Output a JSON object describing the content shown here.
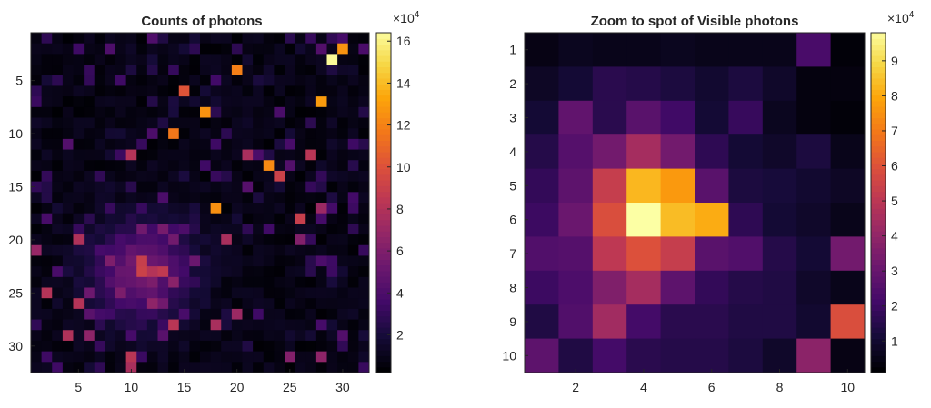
{
  "chart_data": [
    {
      "type": "heatmap",
      "title": "Counts of photons",
      "x_ticks": [
        5,
        10,
        15,
        20,
        25,
        30
      ],
      "y_ticks": [
        5,
        10,
        15,
        20,
        25,
        30
      ],
      "xlim": [
        0.5,
        32.5
      ],
      "ylim": [
        0.5,
        32.5
      ],
      "y_direction": "reverse",
      "grid": "off",
      "colormap": "inferno",
      "colorbar": {
        "ticks": [
          2,
          4,
          6,
          8,
          10,
          12,
          14,
          16
        ],
        "tick_labels": [
          "2",
          "4",
          "6",
          "8",
          "10",
          "12",
          "14",
          "16"
        ],
        "exponent_label": "×10",
        "exponent_power": "4",
        "clim": [
          0.2,
          16.4
        ]
      },
      "bright_cells": [
        {
          "x": 29,
          "y": 3,
          "value": 16.2
        },
        {
          "x": 30,
          "y": 2,
          "value": 12.5
        },
        {
          "x": 20,
          "y": 4,
          "value": 11.8
        },
        {
          "x": 15,
          "y": 6,
          "value": 10.0
        },
        {
          "x": 28,
          "y": 7,
          "value": 12.8
        },
        {
          "x": 17,
          "y": 8,
          "value": 12.5
        },
        {
          "x": 14,
          "y": 10,
          "value": 11.5
        },
        {
          "x": 10,
          "y": 12,
          "value": 8.0
        },
        {
          "x": 21,
          "y": 12,
          "value": 7.5
        },
        {
          "x": 27,
          "y": 12,
          "value": 8.2
        },
        {
          "x": 23,
          "y": 13,
          "value": 12.2
        },
        {
          "x": 24,
          "y": 14,
          "value": 9.0
        },
        {
          "x": 18,
          "y": 17,
          "value": 12.4
        },
        {
          "x": 26,
          "y": 18,
          "value": 8.8
        },
        {
          "x": 28,
          "y": 17,
          "value": 7.0
        },
        {
          "x": 19,
          "y": 20,
          "value": 7.5
        },
        {
          "x": 5,
          "y": 20,
          "value": 7.8
        },
        {
          "x": 1,
          "y": 21,
          "value": 6.8
        },
        {
          "x": 11,
          "y": 23,
          "value": 9.0
        },
        {
          "x": 12,
          "y": 23,
          "value": 8.0
        },
        {
          "x": 13,
          "y": 23,
          "value": 8.5
        },
        {
          "x": 11,
          "y": 22,
          "value": 8.8
        },
        {
          "x": 2,
          "y": 25,
          "value": 8.0
        },
        {
          "x": 5,
          "y": 26,
          "value": 8.0
        },
        {
          "x": 12,
          "y": 26,
          "value": 6.5
        },
        {
          "x": 14,
          "y": 28,
          "value": 8.2
        },
        {
          "x": 4,
          "y": 29,
          "value": 7.8
        },
        {
          "x": 18,
          "y": 28,
          "value": 7.5
        },
        {
          "x": 20,
          "y": 27,
          "value": 7.0
        },
        {
          "x": 28,
          "y": 31,
          "value": 6.5
        },
        {
          "x": 10,
          "y": 31,
          "value": 8.2
        },
        {
          "x": 10,
          "y": 32,
          "value": 7.5
        },
        {
          "x": 25,
          "y": 31,
          "value": 6.0
        },
        {
          "x": 26,
          "y": 20,
          "value": 6.0
        },
        {
          "x": 6,
          "y": 29,
          "value": 6.5
        }
      ]
    },
    {
      "type": "heatmap",
      "title": "Zoom to spot of Visible photons",
      "x_ticks": [
        2,
        4,
        6,
        8,
        10
      ],
      "y_ticks": [
        1,
        2,
        3,
        4,
        5,
        6,
        7,
        8,
        9,
        10
      ],
      "xlim": [
        0.5,
        10.5
      ],
      "ylim": [
        0.5,
        10.5
      ],
      "y_direction": "reverse",
      "grid": "off",
      "colormap": "inferno",
      "colorbar": {
        "ticks": [
          1,
          2,
          3,
          4,
          5,
          6,
          7,
          8,
          9
        ],
        "tick_labels": [
          "1",
          "2",
          "3",
          "4",
          "5",
          "6",
          "7",
          "8",
          "9"
        ],
        "exponent_label": "×10",
        "exponent_power": "4",
        "clim": [
          0.1,
          9.8
        ]
      },
      "values": [
        [
          0.4,
          0.6,
          0.5,
          0.5,
          0.6,
          0.5,
          0.5,
          0.5,
          2.2,
          0.2
        ],
        [
          0.7,
          1.0,
          1.5,
          1.4,
          1.2,
          0.9,
          1.2,
          0.8,
          0.3,
          0.3
        ],
        [
          1.0,
          2.8,
          1.5,
          2.6,
          2.0,
          1.0,
          1.8,
          0.6,
          0.3,
          0.2
        ],
        [
          1.4,
          2.5,
          3.2,
          4.4,
          3.2,
          1.6,
          1.0,
          0.8,
          1.2,
          0.5
        ],
        [
          1.7,
          2.7,
          5.2,
          8.2,
          7.6,
          2.6,
          1.2,
          1.1,
          0.9,
          0.7
        ],
        [
          1.9,
          3.0,
          5.8,
          9.8,
          8.3,
          8.0,
          1.6,
          1.0,
          0.8,
          0.5
        ],
        [
          2.4,
          2.5,
          5.0,
          5.9,
          5.2,
          2.6,
          2.4,
          1.4,
          1.0,
          3.2
        ],
        [
          1.9,
          2.3,
          3.5,
          4.4,
          2.7,
          1.7,
          1.4,
          1.3,
          0.8,
          0.5
        ],
        [
          1.3,
          2.4,
          4.3,
          2.1,
          1.5,
          1.5,
          1.3,
          1.3,
          0.9,
          5.8
        ],
        [
          2.7,
          1.3,
          2.1,
          1.5,
          1.4,
          1.4,
          1.2,
          0.8,
          3.8,
          0.4
        ]
      ]
    }
  ]
}
